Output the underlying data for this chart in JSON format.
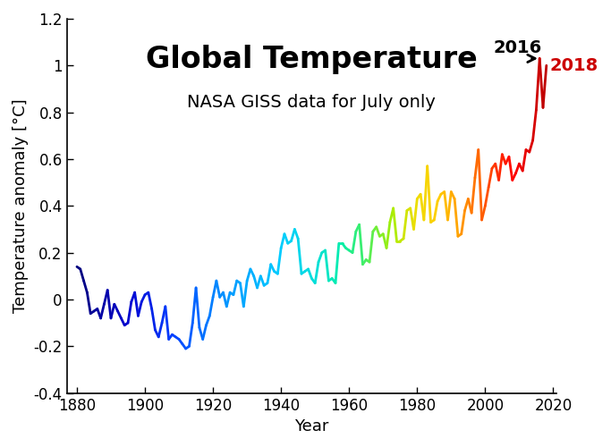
{
  "title": "Global Temperature",
  "subtitle": "NASA GISS data for July only",
  "xlabel": "Year",
  "ylabel": "Temperature anomaly [°C]",
  "xlim": [
    1877,
    2021
  ],
  "ylim": [
    -0.4,
    1.2
  ],
  "xticks": [
    1880,
    1900,
    1920,
    1940,
    1960,
    1980,
    2000,
    2020
  ],
  "yticks": [
    -0.4,
    -0.2,
    0.0,
    0.2,
    0.4,
    0.6,
    0.8,
    1.0,
    1.2
  ],
  "annotation_text": "2016",
  "annotation_end_label": "2018",
  "years": [
    1880,
    1881,
    1882,
    1883,
    1884,
    1885,
    1886,
    1887,
    1888,
    1889,
    1890,
    1891,
    1892,
    1893,
    1894,
    1895,
    1896,
    1897,
    1898,
    1899,
    1900,
    1901,
    1902,
    1903,
    1904,
    1905,
    1906,
    1907,
    1908,
    1909,
    1910,
    1911,
    1912,
    1913,
    1914,
    1915,
    1916,
    1917,
    1918,
    1919,
    1920,
    1921,
    1922,
    1923,
    1924,
    1925,
    1926,
    1927,
    1928,
    1929,
    1930,
    1931,
    1932,
    1933,
    1934,
    1935,
    1936,
    1937,
    1938,
    1939,
    1940,
    1941,
    1942,
    1943,
    1944,
    1945,
    1946,
    1947,
    1948,
    1949,
    1950,
    1951,
    1952,
    1953,
    1954,
    1955,
    1956,
    1957,
    1958,
    1959,
    1960,
    1961,
    1962,
    1963,
    1964,
    1965,
    1966,
    1967,
    1968,
    1969,
    1970,
    1971,
    1972,
    1973,
    1974,
    1975,
    1976,
    1977,
    1978,
    1979,
    1980,
    1981,
    1982,
    1983,
    1984,
    1985,
    1986,
    1987,
    1988,
    1989,
    1990,
    1991,
    1992,
    1993,
    1994,
    1995,
    1996,
    1997,
    1998,
    1999,
    2000,
    2001,
    2002,
    2003,
    2004,
    2005,
    2006,
    2007,
    2008,
    2009,
    2010,
    2011,
    2012,
    2013,
    2014,
    2015,
    2016,
    2017,
    2018
  ],
  "anomalies": [
    0.14,
    0.13,
    0.08,
    0.03,
    -0.06,
    -0.05,
    -0.04,
    -0.08,
    -0.02,
    0.04,
    -0.08,
    -0.02,
    -0.05,
    -0.08,
    -0.11,
    -0.1,
    -0.01,
    0.03,
    -0.07,
    -0.01,
    0.02,
    0.03,
    -0.04,
    -0.13,
    -0.16,
    -0.1,
    -0.03,
    -0.17,
    -0.15,
    -0.16,
    -0.17,
    -0.19,
    -0.21,
    -0.2,
    -0.1,
    0.05,
    -0.12,
    -0.17,
    -0.11,
    -0.07,
    0.01,
    0.08,
    0.01,
    0.03,
    -0.03,
    0.03,
    0.02,
    0.08,
    0.07,
    -0.03,
    0.08,
    0.13,
    0.1,
    0.05,
    0.1,
    0.06,
    0.07,
    0.15,
    0.12,
    0.11,
    0.22,
    0.28,
    0.24,
    0.25,
    0.3,
    0.26,
    0.11,
    0.12,
    0.13,
    0.09,
    0.07,
    0.16,
    0.2,
    0.21,
    0.08,
    0.09,
    0.07,
    0.24,
    0.24,
    0.22,
    0.21,
    0.2,
    0.29,
    0.32,
    0.15,
    0.17,
    0.16,
    0.29,
    0.31,
    0.27,
    0.28,
    0.22,
    0.33,
    0.39,
    0.25,
    0.25,
    0.26,
    0.38,
    0.39,
    0.3,
    0.43,
    0.45,
    0.34,
    0.57,
    0.33,
    0.34,
    0.42,
    0.45,
    0.46,
    0.34,
    0.46,
    0.43,
    0.27,
    0.28,
    0.38,
    0.43,
    0.37,
    0.52,
    0.64,
    0.34,
    0.4,
    0.48,
    0.56,
    0.58,
    0.51,
    0.62,
    0.58,
    0.61,
    0.51,
    0.54,
    0.58,
    0.55,
    0.64,
    0.63,
    0.68,
    0.81,
    1.03,
    0.82,
    1.0
  ],
  "background_color": "#ffffff",
  "line_width": 2.0,
  "title_fontsize": 24,
  "subtitle_fontsize": 14,
  "axis_label_fontsize": 13,
  "tick_fontsize": 12,
  "cmap_stops": [
    [
      0.0,
      "#00007F"
    ],
    [
      0.1,
      "#0000CD"
    ],
    [
      0.2,
      "#0040FF"
    ],
    [
      0.32,
      "#0099FF"
    ],
    [
      0.43,
      "#00CCFF"
    ],
    [
      0.5,
      "#00DDDD"
    ],
    [
      0.56,
      "#00EEAA"
    ],
    [
      0.62,
      "#55EE55"
    ],
    [
      0.67,
      "#AAEE00"
    ],
    [
      0.72,
      "#EEDD00"
    ],
    [
      0.77,
      "#FFCC00"
    ],
    [
      0.83,
      "#FF8800"
    ],
    [
      0.88,
      "#FF4400"
    ],
    [
      0.93,
      "#FF0000"
    ],
    [
      1.0,
      "#BB0000"
    ]
  ]
}
